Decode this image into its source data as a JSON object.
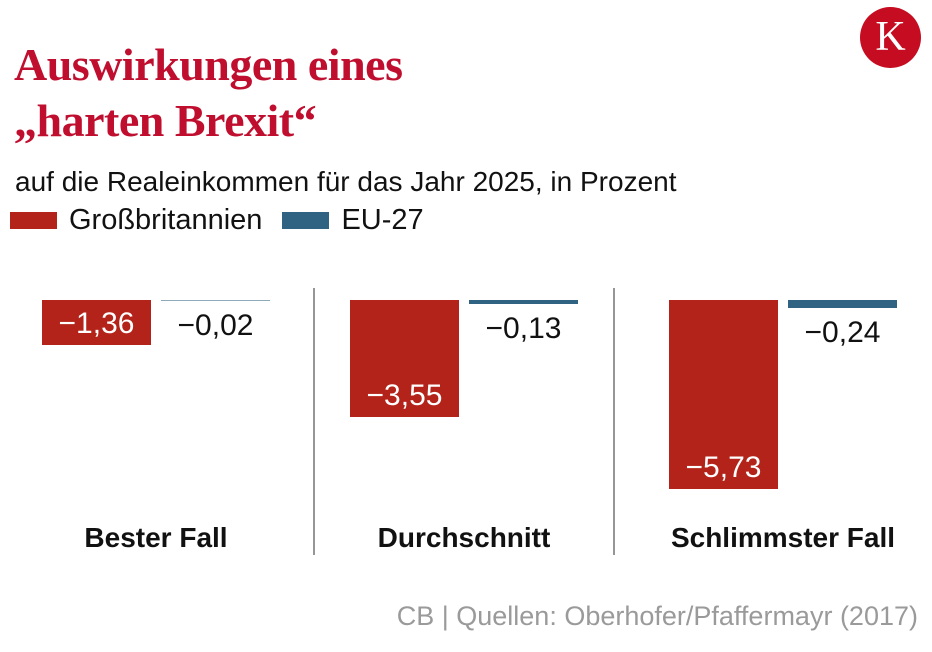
{
  "header": {
    "title_line1": "Auswirkungen eines",
    "title_line2": "„harten Brexit“",
    "subtitle": "auf die Realeinkommen für das Jahr 2025, in Prozent",
    "brand_letter": "K"
  },
  "footer": {
    "source": "CB | Quellen: Oberhofer/Pfaffermayr (2017)"
  },
  "colors": {
    "title_red": "#c00e2f",
    "logo_red": "#c50c20",
    "gb_red": "#b3231a",
    "eu_blue": "#306281",
    "divider_gray": "#969696",
    "footer_gray": "#9a9a9a"
  },
  "chart_data": {
    "type": "bar",
    "title": "Auswirkungen eines „harten Brexit“",
    "subtitle": "auf die Realeinkommen für das Jahr 2025, in Prozent",
    "categories": [
      "Bester Fall",
      "Durchschnitt",
      "Schlimmster Fall"
    ],
    "series": [
      {
        "name": "Großbritannien",
        "color": "#b3231a",
        "values": [
          -1.36,
          -3.55,
          -5.73
        ],
        "labels": [
          "−1,36",
          "−3,55",
          "−5,73"
        ]
      },
      {
        "name": "EU-27",
        "color": "#306281",
        "values": [
          -0.02,
          -0.13,
          -0.24
        ],
        "labels": [
          "−0,02",
          "−0,13",
          "−0,24"
        ]
      }
    ],
    "unit": "Prozent (%)",
    "orientation": "columns-hanging-from-zero-baseline",
    "value_axis": {
      "min": -6,
      "max": 0,
      "visible": false
    },
    "pixels_per_unit": 33,
    "grid": false,
    "legend_position": "top-left",
    "label_position": {
      "Großbritannien": "inside-bottom-white",
      "EU-27": "below-bar-black"
    }
  }
}
